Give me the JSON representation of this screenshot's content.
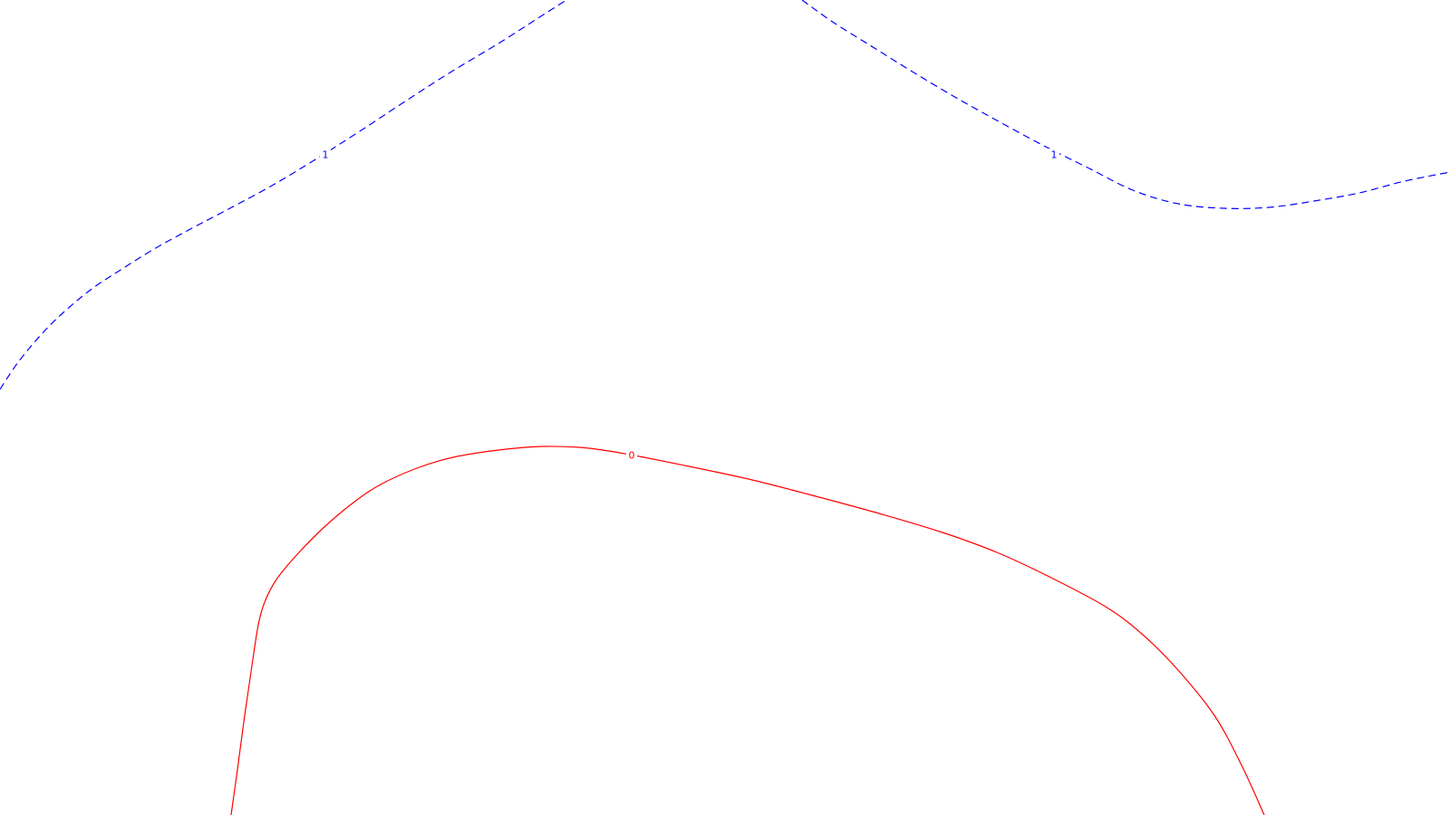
{
  "chart_data": {
    "type": "contour",
    "title": "",
    "xlabel": "",
    "ylabel": "",
    "grid": false,
    "legend": "none",
    "series": [
      {
        "name": "contour-level-1-left",
        "level": "1",
        "label": "1",
        "color": "#0000ff",
        "style": "dashed",
        "points": [
          [
            0,
            430
          ],
          [
            20,
            400
          ],
          [
            45,
            370
          ],
          [
            70,
            345
          ],
          [
            100,
            320
          ],
          [
            130,
            300
          ],
          [
            170,
            275
          ],
          [
            210,
            253
          ],
          [
            250,
            232
          ],
          [
            300,
            205
          ],
          [
            345,
            178
          ],
          [
            400,
            143
          ],
          [
            450,
            110
          ],
          [
            500,
            78
          ],
          [
            550,
            48
          ],
          [
            600,
            16
          ],
          [
            625,
            0
          ]
        ]
      },
      {
        "name": "contour-level-1-right",
        "level": "1",
        "label": "1",
        "color": "#0000ff",
        "style": "dashed",
        "points": [
          [
            885,
            0
          ],
          [
            920,
            25
          ],
          [
            960,
            50
          ],
          [
            1000,
            75
          ],
          [
            1050,
            105
          ],
          [
            1100,
            133
          ],
          [
            1150,
            160
          ],
          [
            1200,
            185
          ],
          [
            1250,
            210
          ],
          [
            1300,
            225
          ],
          [
            1350,
            230
          ],
          [
            1400,
            229
          ],
          [
            1450,
            222
          ],
          [
            1500,
            213
          ],
          [
            1550,
            200
          ],
          [
            1600,
            190
          ]
        ]
      },
      {
        "name": "contour-level-0",
        "level": "0",
        "label": "0",
        "color": "#ff0000",
        "style": "solid",
        "points": [
          [
            255,
            900
          ],
          [
            262,
            850
          ],
          [
            270,
            790
          ],
          [
            278,
            735
          ],
          [
            285,
            690
          ],
          [
            292,
            665
          ],
          [
            305,
            640
          ],
          [
            330,
            610
          ],
          [
            360,
            580
          ],
          [
            390,
            555
          ],
          [
            420,
            535
          ],
          [
            460,
            517
          ],
          [
            500,
            505
          ],
          [
            550,
            497
          ],
          [
            600,
            493
          ],
          [
            650,
            495
          ],
          [
            700,
            503
          ],
          [
            760,
            515
          ],
          [
            830,
            530
          ],
          [
            900,
            548
          ],
          [
            970,
            567
          ],
          [
            1040,
            588
          ],
          [
            1100,
            610
          ],
          [
            1160,
            638
          ],
          [
            1220,
            670
          ],
          [
            1260,
            700
          ],
          [
            1300,
            740
          ],
          [
            1340,
            790
          ],
          [
            1370,
            845
          ],
          [
            1395,
            900
          ]
        ]
      }
    ],
    "annotations": [
      {
        "text": "1",
        "series": "contour-level-1-left",
        "at": [
          359,
          171
        ]
      },
      {
        "text": "1",
        "series": "contour-level-1-right",
        "at": [
          1163,
          171
        ]
      },
      {
        "text": "0",
        "series": "contour-level-0",
        "at": [
          697,
          503
        ]
      }
    ]
  }
}
